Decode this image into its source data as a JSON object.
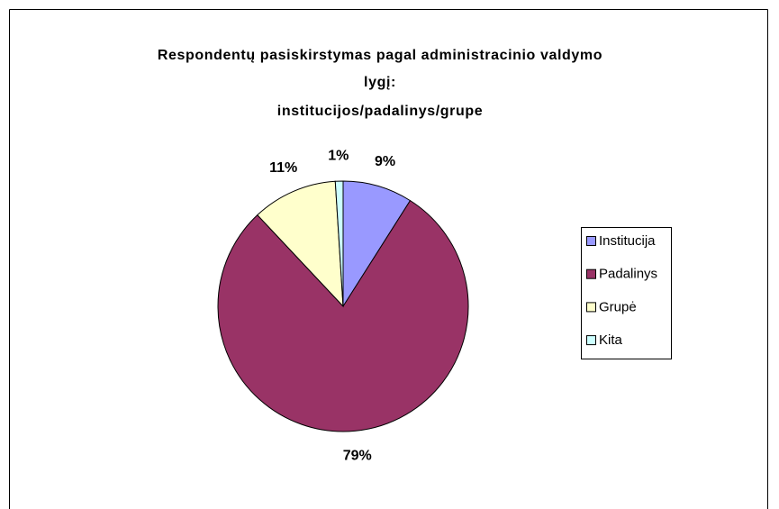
{
  "chart_data": {
    "type": "pie",
    "title": [
      "Respondentų pasiskirstymas pagal administracinio valdymo",
      "lygį:",
      "institucijos/padalinys/grupe"
    ],
    "categories": [
      "Institucija",
      "Padalinys",
      "Grupė",
      "Kita"
    ],
    "values": [
      9,
      79,
      11,
      1
    ],
    "value_labels": [
      "9%",
      "79%",
      "11%",
      "1%"
    ],
    "colors": [
      "#9999ff",
      "#993366",
      "#ffffcc",
      "#ccffff"
    ],
    "legend": "right"
  }
}
